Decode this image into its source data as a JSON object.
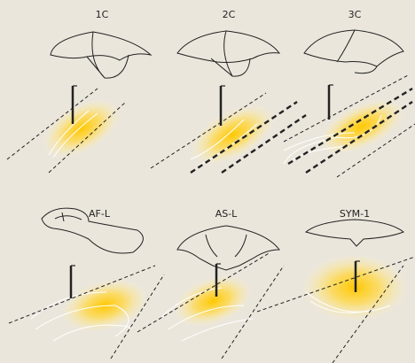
{
  "panels": [
    {
      "label": "1C"
    },
    {
      "label": "2C"
    },
    {
      "label": "3C"
    },
    {
      "label": "AF-L"
    },
    {
      "label": "AS-L"
    },
    {
      "label": "SYM-1"
    }
  ]
}
